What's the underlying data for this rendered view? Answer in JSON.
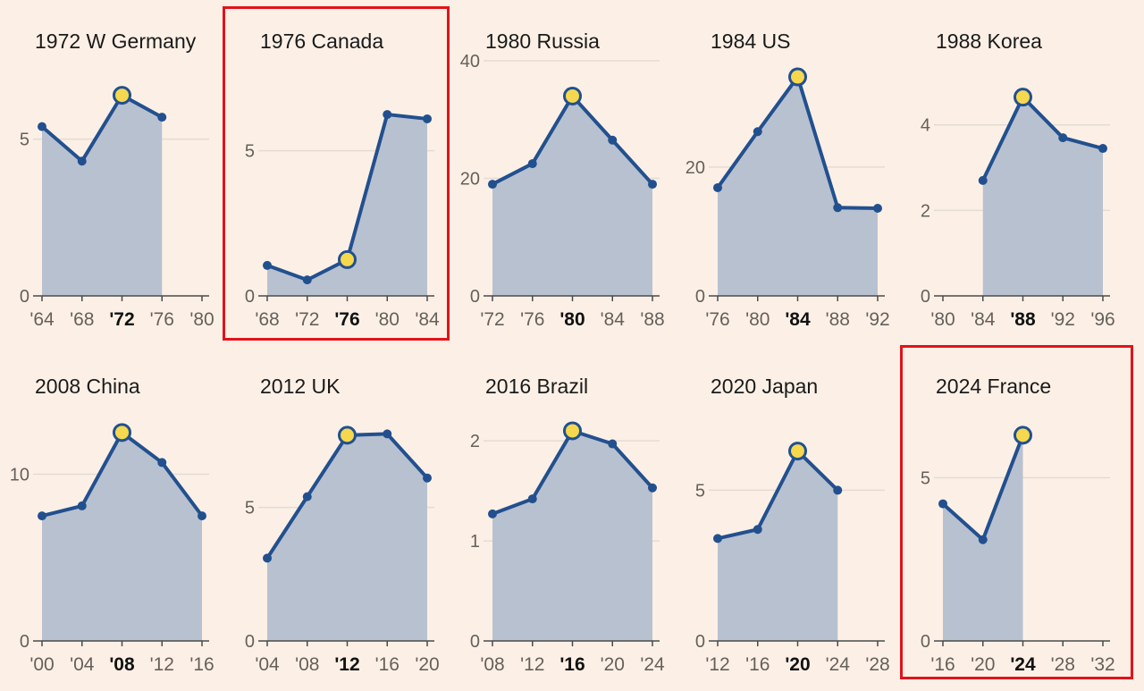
{
  "colors": {
    "background": "#FCF0E6",
    "area_fill": "#B8C1CF",
    "line": "#22508F",
    "marker_fill": "#F6D84E",
    "highlight_border": "#E3121A",
    "gridline": "#E3DBD3"
  },
  "chart_data": [
    {
      "type": "area",
      "title": "1972 W Germany",
      "host_year": "'72",
      "highlighted": false,
      "x_ticks": [
        "'64",
        "'68",
        "'72",
        "'76",
        "'80"
      ],
      "y_ticks": [
        "0",
        "5"
      ],
      "y_tick_values": [
        0,
        5
      ],
      "ylim": [
        0,
        7.5
      ],
      "values": [
        5.4,
        4.3,
        6.4,
        5.7
      ],
      "marked_points": [
        2
      ]
    },
    {
      "type": "area",
      "title": "1976 Canada",
      "host_year": "'76",
      "highlighted": true,
      "x_ticks": [
        "'68",
        "'72",
        "'76",
        "'80",
        "'84"
      ],
      "y_ticks": [
        "0",
        "5"
      ],
      "y_tick_values": [
        0,
        5
      ],
      "ylim": [
        0,
        8.1
      ],
      "values": [
        1.05,
        0.55,
        1.25,
        6.25,
        6.1
      ],
      "marked_points": [
        2
      ]
    },
    {
      "type": "area",
      "title": "1980 Russia",
      "host_year": "'80",
      "highlighted": false,
      "x_ticks": [
        "'72",
        "'76",
        "'80",
        "'84",
        "'88"
      ],
      "y_ticks": [
        "0",
        "20",
        "40"
      ],
      "y_tick_values": [
        0,
        20,
        40
      ],
      "ylim": [
        0,
        40
      ],
      "values": [
        19,
        22.5,
        34,
        26.5,
        19
      ],
      "marked_points": [
        2
      ]
    },
    {
      "type": "area",
      "title": "1984 US",
      "host_year": "'84",
      "highlighted": false,
      "x_ticks": [
        "'76",
        "'80",
        "'84",
        "'88",
        "'92"
      ],
      "y_ticks": [
        "0",
        "20"
      ],
      "y_tick_values": [
        0,
        20
      ],
      "ylim": [
        0,
        36.5
      ],
      "values": [
        16.8,
        25.5,
        34,
        13.7,
        13.6
      ],
      "marked_points": [
        2
      ]
    },
    {
      "type": "area",
      "title": "1988 Korea",
      "host_year": "'88",
      "highlighted": false,
      "x_ticks": [
        "'80",
        "'84",
        "'88",
        "'92",
        "'96"
      ],
      "y_ticks": [
        "0",
        "2",
        "4"
      ],
      "y_tick_values": [
        0,
        2,
        4
      ],
      "ylim": [
        0,
        5.5
      ],
      "values": [
        null,
        2.7,
        4.65,
        3.7,
        3.45
      ],
      "marked_points": [
        2
      ]
    },
    {
      "type": "area",
      "title": "2008 China",
      "host_year": "'08",
      "highlighted": false,
      "x_ticks": [
        "'00",
        "'04",
        "'08",
        "'12",
        "'16"
      ],
      "y_ticks": [
        "0",
        "10"
      ],
      "y_tick_values": [
        0,
        10
      ],
      "ylim": [
        0,
        14.1
      ],
      "values": [
        7.5,
        8.1,
        12.5,
        10.7,
        7.5
      ],
      "marked_points": [
        2
      ]
    },
    {
      "type": "area",
      "title": "2012 UK",
      "host_year": "'12",
      "highlighted": false,
      "x_ticks": [
        "'04",
        "'08",
        "'12",
        "'16",
        "'20"
      ],
      "y_ticks": [
        "0",
        "5"
      ],
      "y_tick_values": [
        0,
        5
      ],
      "ylim": [
        0,
        8.8
      ],
      "values": [
        3.1,
        5.4,
        7.7,
        7.75,
        6.1
      ],
      "marked_points": [
        2
      ]
    },
    {
      "type": "area",
      "title": "2016 Brazil",
      "host_year": "'16",
      "highlighted": false,
      "x_ticks": [
        "'08",
        "'12",
        "'16",
        "'20",
        "'24"
      ],
      "y_ticks": [
        "0",
        "1",
        "2"
      ],
      "y_tick_values": [
        0,
        1,
        2
      ],
      "ylim": [
        0,
        2.35
      ],
      "values": [
        1.27,
        1.42,
        2.1,
        1.97,
        1.53
      ],
      "marked_points": [
        2
      ]
    },
    {
      "type": "area",
      "title": "2020 Japan",
      "host_year": "'20",
      "highlighted": false,
      "x_ticks": [
        "'12",
        "'16",
        "'20",
        "'24",
        "'28"
      ],
      "y_ticks": [
        "0",
        "5"
      ],
      "y_tick_values": [
        0,
        5
      ],
      "ylim": [
        0,
        7.8
      ],
      "values": [
        3.4,
        3.7,
        6.3,
        5.0,
        null
      ],
      "marked_points": [
        2
      ]
    },
    {
      "type": "area",
      "title": "2024 France",
      "host_year": "'24",
      "highlighted": true,
      "x_ticks": [
        "'16",
        "'20",
        "'24",
        "'28",
        "'32"
      ],
      "y_ticks": [
        "0",
        "5"
      ],
      "y_tick_values": [
        0,
        5
      ],
      "ylim": [
        0,
        7.2
      ],
      "values": [
        4.2,
        3.1,
        6.3,
        null,
        null
      ],
      "marked_points": [
        2
      ]
    }
  ]
}
